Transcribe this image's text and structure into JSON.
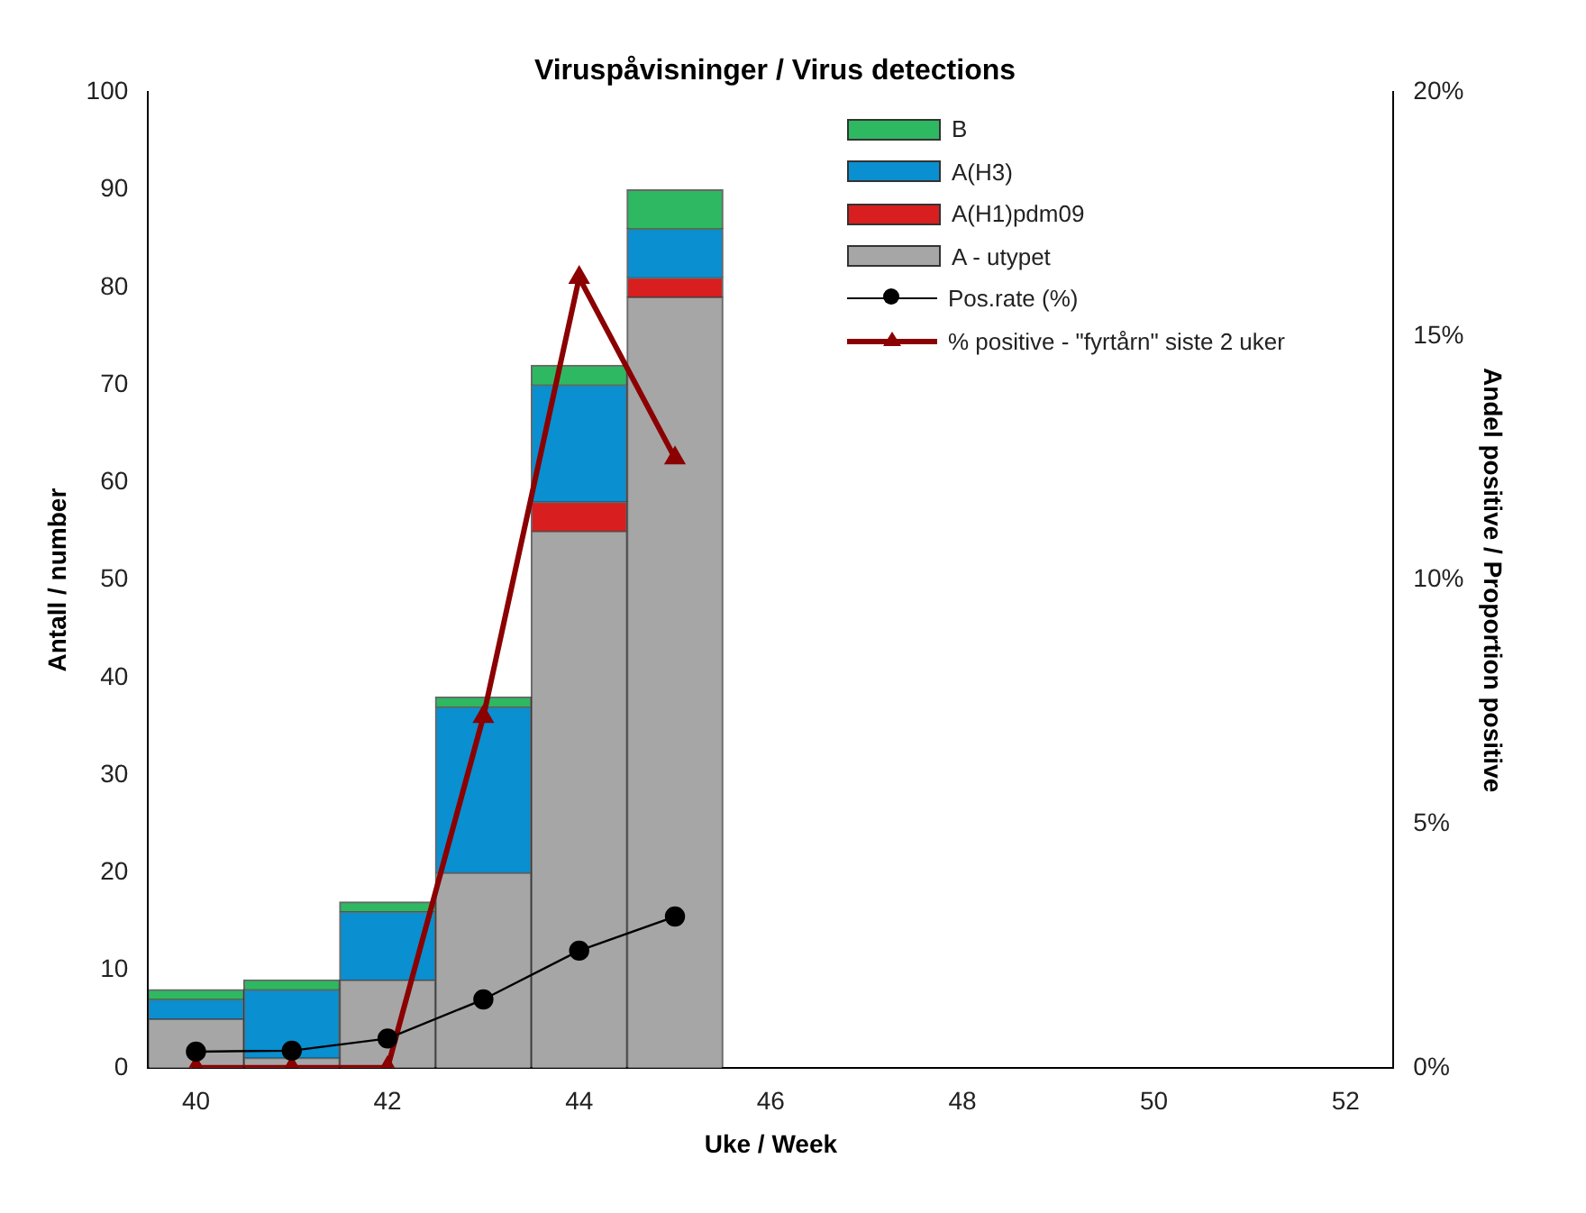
{
  "chart_data": {
    "type": "bar",
    "title": "Viruspåvisninger / Virus detections",
    "xlabel": "Uke / Week",
    "ylabel": "Antall / number",
    "y2label": "Andel positive / Proportion positive",
    "categories": [
      "40",
      null,
      "42",
      null,
      "44",
      null,
      "46",
      null,
      "48",
      null,
      "50",
      null,
      "52"
    ],
    "stacked": true,
    "legend": "top right",
    "grid": false,
    "ylim": [
      0,
      100
    ],
    "yticks": [
      0,
      10,
      20,
      30,
      40,
      50,
      60,
      70,
      80,
      90,
      100
    ],
    "y2lim": [
      0,
      20
    ],
    "y2ticks": [
      {
        "value": 0,
        "label": "0%"
      },
      {
        "value": 5,
        "label": "5%"
      },
      {
        "value": 10,
        "label": "10%"
      },
      {
        "value": 15,
        "label": "15%"
      },
      {
        "value": 20,
        "label": "20%"
      }
    ],
    "series": [
      {
        "name": "A - utypet",
        "color": "#a6a6a6",
        "values": [
          5,
          1,
          9,
          20,
          55,
          79,
          null,
          null,
          null,
          null,
          null,
          null,
          null
        ]
      },
      {
        "name": "A(H1)pdm09",
        "color": "#d81e1e",
        "values": [
          0,
          0,
          0,
          0,
          3,
          2,
          null,
          null,
          null,
          null,
          null,
          null,
          null
        ]
      },
      {
        "name": "A(H3)",
        "color": "#0a8fd0",
        "values": [
          2,
          7,
          7,
          17,
          12,
          5,
          null,
          null,
          null,
          null,
          null,
          null,
          null
        ]
      },
      {
        "name": "B",
        "color": "#2fb862",
        "values": [
          1,
          1,
          1,
          1,
          2,
          4,
          null,
          null,
          null,
          null,
          null,
          null,
          null
        ]
      },
      {
        "name": "Pos.rate (%)",
        "type": "line",
        "axis": "y2",
        "color": "#000000",
        "marker": "circle",
        "values": [
          0.33,
          0.35,
          0.6,
          1.4,
          2.4,
          3.1,
          null,
          null,
          null,
          null,
          null,
          null,
          null
        ]
      },
      {
        "name": "% positive - \"fyrtårn\" siste 2 uker",
        "type": "line",
        "axis": "y2",
        "color": "#8b0000",
        "marker": "triangle",
        "values": [
          0,
          0,
          0,
          7.2,
          16.2,
          12.5,
          null,
          null,
          null,
          null,
          null,
          null,
          null
        ]
      }
    ]
  }
}
